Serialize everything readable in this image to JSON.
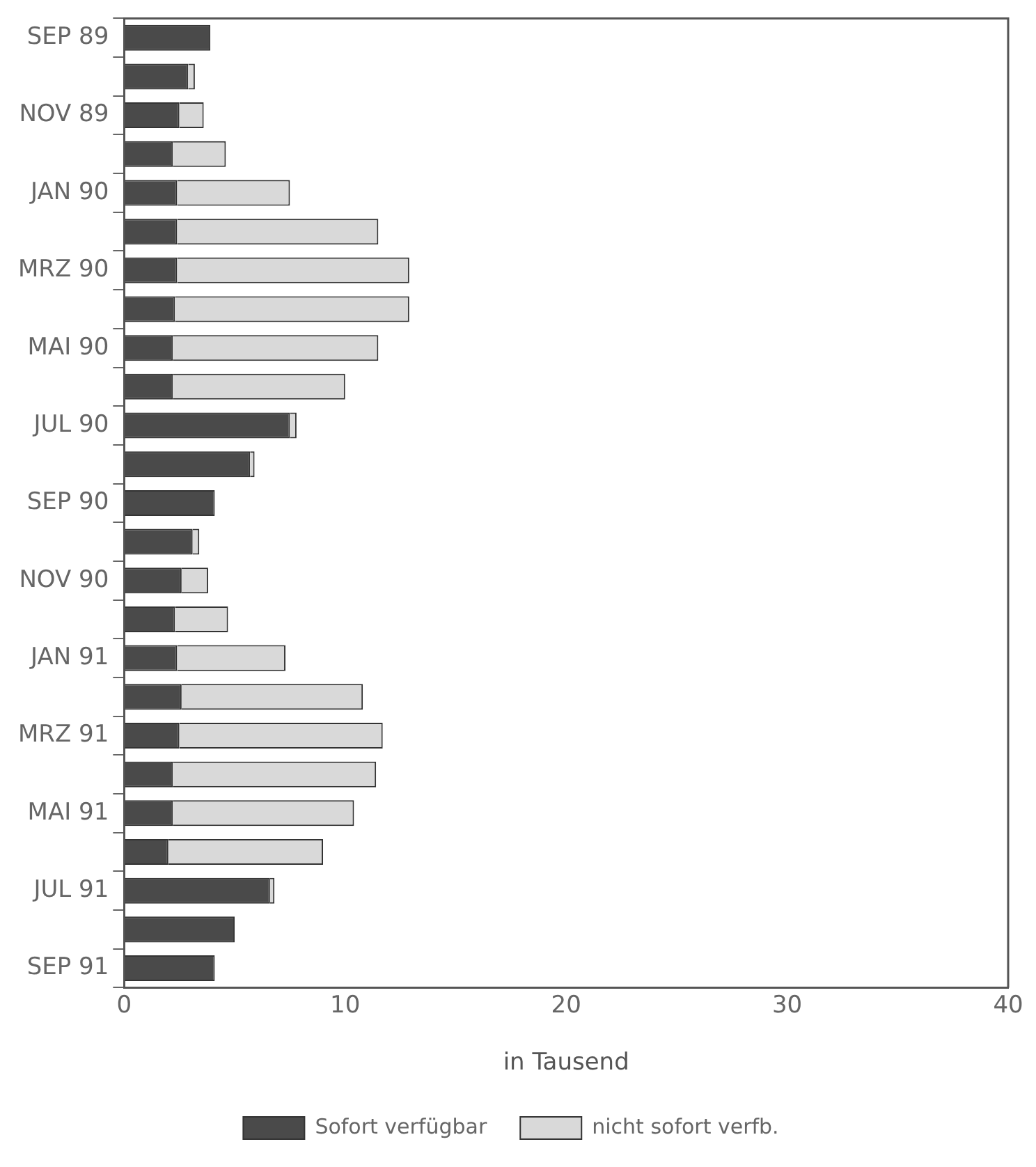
{
  "chart_data": {
    "type": "bar",
    "orientation": "horizontal",
    "stacked": true,
    "xlabel": "in Tausend",
    "categories": [
      "SEP 89",
      null,
      "NOV 89",
      null,
      "JAN 90",
      null,
      "MRZ 90",
      null,
      "MAI 90",
      null,
      "JUL 90",
      null,
      "SEP 90",
      null,
      "NOV 90",
      null,
      "JAN 91",
      null,
      "MRZ 91",
      null,
      "MAI 91",
      null,
      "JUL 91",
      null,
      "SEP 91"
    ],
    "series": [
      {
        "name": "Sofort verfügbar",
        "color": "#4a4a4a",
        "values": [
          3.9,
          2.9,
          2.5,
          2.2,
          2.4,
          2.4,
          2.4,
          2.3,
          2.2,
          2.2,
          7.5,
          5.7,
          4.1,
          3.1,
          2.6,
          2.3,
          2.4,
          2.6,
          2.5,
          2.2,
          2.2,
          2.0,
          6.6,
          5.0,
          4.1
        ]
      },
      {
        "name": "nicht sofort verfb.",
        "color": "#d9d9d9",
        "values": [
          0,
          0.3,
          1.1,
          2.4,
          5.1,
          9.1,
          10.5,
          10.6,
          9.3,
          7.8,
          0.3,
          0.2,
          0,
          0.3,
          1.2,
          2.4,
          4.9,
          8.2,
          9.2,
          9.2,
          8.2,
          7.0,
          0.2,
          0,
          0
        ]
      }
    ],
    "xlim": [
      0,
      40
    ],
    "xticks": [
      0,
      10,
      20,
      30,
      40
    ],
    "grid": false,
    "legend": "bottom"
  }
}
